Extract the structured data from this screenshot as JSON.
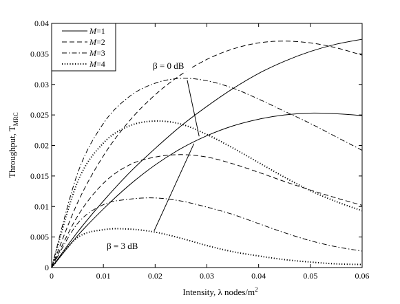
{
  "chart_data": {
    "type": "line",
    "title": "",
    "xlabel": "Intensity, λ nodes/m",
    "xlabel_sup": "2",
    "ylabel": "Throughput, T",
    "ylabel_sub": "MRC",
    "xlim": [
      0,
      0.06
    ],
    "ylim": [
      0,
      0.04
    ],
    "xticks": [
      "0",
      "0.01",
      "0.02",
      "0.03",
      "0.04",
      "0.05",
      "0.06"
    ],
    "yticks": [
      "0",
      "0.005",
      "0.01",
      "0.015",
      "0.02",
      "0.025",
      "0.03",
      "0.035",
      "0.04"
    ],
    "grid": false,
    "legend_position": "top-left",
    "legend": [
      {
        "prefix": "M",
        "suffix": "=1",
        "style": "solid"
      },
      {
        "prefix": "M",
        "suffix": "=2",
        "style": "dashed"
      },
      {
        "prefix": "M",
        "suffix": "=3",
        "style": "dashdot"
      },
      {
        "prefix": "M",
        "suffix": "=4",
        "style": "dotted"
      }
    ],
    "annotations": [
      {
        "text": "β = 0 dB",
        "line_from": [
          0.0262,
          0.0307
        ],
        "line_to": [
          0.0285,
          0.0215
        ]
      },
      {
        "text": "β = 3 dB",
        "line_from": [
          0.0198,
          0.006
        ],
        "line_to": [
          0.0275,
          0.0203
        ]
      }
    ],
    "x": [
      0,
      0.005,
      0.01,
      0.015,
      0.02,
      0.025,
      0.03,
      0.035,
      0.04,
      0.045,
      0.05,
      0.055,
      0.06
    ],
    "series": [
      {
        "group": "β = 0 dB",
        "style": "solid",
        "values": [
          0,
          0.0058,
          0.0109,
          0.0155,
          0.0195,
          0.0232,
          0.0264,
          0.0293,
          0.0318,
          0.0338,
          0.0354,
          0.0366,
          0.0374
        ]
      },
      {
        "group": "β = 0 dB",
        "style": "dashed",
        "values": [
          0,
          0.0106,
          0.0183,
          0.024,
          0.0283,
          0.0316,
          0.0341,
          0.0358,
          0.0368,
          0.0371,
          0.0368,
          0.036,
          0.0348
        ]
      },
      {
        "group": "β = 0 dB",
        "style": "dashdot",
        "values": [
          0,
          0.0154,
          0.0236,
          0.028,
          0.0302,
          0.031,
          0.0306,
          0.0294,
          0.0276,
          0.0256,
          0.0236,
          0.0214,
          0.0192
        ]
      },
      {
        "group": "β = 0 dB",
        "style": "dotted",
        "values": [
          0,
          0.014,
          0.0204,
          0.0232,
          0.024,
          0.0235,
          0.0218,
          0.0196,
          0.0172,
          0.0148,
          0.0126,
          0.0108,
          0.0093
        ]
      },
      {
        "group": "β = 3 dB",
        "style": "solid",
        "values": [
          0,
          0.0052,
          0.0096,
          0.0135,
          0.0168,
          0.0195,
          0.0216,
          0.0232,
          0.0243,
          0.025,
          0.0253,
          0.0252,
          0.0249
        ]
      },
      {
        "group": "β = 3 dB",
        "style": "dashed",
        "values": [
          0,
          0.0084,
          0.0138,
          0.0168,
          0.0181,
          0.0185,
          0.0181,
          0.017,
          0.0156,
          0.0141,
          0.0127,
          0.0114,
          0.0102
        ]
      },
      {
        "group": "β = 3 dB",
        "style": "dashdot",
        "values": [
          0,
          0.0072,
          0.0103,
          0.0112,
          0.0114,
          0.0109,
          0.0099,
          0.0087,
          0.0072,
          0.0057,
          0.0044,
          0.0034,
          0.0027
        ]
      },
      {
        "group": "β = 3 dB",
        "style": "dotted",
        "values": [
          0,
          0.0049,
          0.0062,
          0.0063,
          0.0058,
          0.0048,
          0.0036,
          0.0026,
          0.0019,
          0.0013,
          0.0009,
          0.0006,
          0.0005
        ]
      }
    ]
  }
}
